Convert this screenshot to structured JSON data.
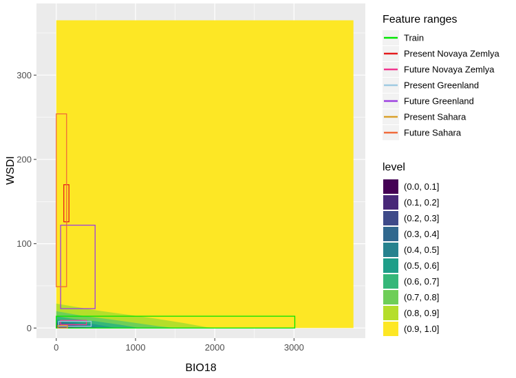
{
  "chart_data": {
    "type": "heatmap",
    "xlabel": "BIO18",
    "ylabel": "WSDI",
    "xlim": [
      -250,
      3900
    ],
    "ylim": [
      -12,
      385
    ],
    "x_ticks": [
      0,
      1000,
      2000,
      3000
    ],
    "y_ticks": [
      0,
      100,
      200,
      300
    ],
    "grid": true,
    "legend_position": "right",
    "surface_extent": {
      "x": [
        0,
        3750
      ],
      "y": [
        0,
        365
      ]
    },
    "feature_ranges": {
      "title": "Feature ranges",
      "series": [
        {
          "name": "Train",
          "color": "#00e600",
          "x": [
            0,
            3010
          ],
          "y": [
            0,
            14
          ]
        },
        {
          "name": "Present Novaya Zemlya",
          "color": "#e41a1c",
          "x": [
            95,
            160
          ],
          "y": [
            126,
            170
          ]
        },
        {
          "name": "Future Novaya Zemlya",
          "color": "#f0368e",
          "x": [
            55,
            380
          ],
          "y": [
            4,
            9
          ]
        },
        {
          "name": "Present Greenland",
          "color": "#9ecae1",
          "x": [
            30,
            440
          ],
          "y": [
            2,
            8
          ]
        },
        {
          "name": "Future Greenland",
          "color": "#9c3ee0",
          "x": [
            55,
            490
          ],
          "y": [
            23,
            122
          ]
        },
        {
          "name": "Present Sahara",
          "color": "#d9a02a",
          "x": [
            20,
            140
          ],
          "y": [
            0,
            3
          ]
        },
        {
          "name": "Future Sahara",
          "color": "#f06a3a",
          "x": [
            0,
            130
          ],
          "y": [
            49,
            254
          ]
        }
      ]
    },
    "level_legend": {
      "title": "level",
      "bins": [
        {
          "label": "(0.0, 0.1]",
          "color": "#440154"
        },
        {
          "label": "(0.1, 0.2]",
          "color": "#482878"
        },
        {
          "label": "(0.2, 0.3]",
          "color": "#3e4a89"
        },
        {
          "label": "(0.3, 0.4]",
          "color": "#31688e"
        },
        {
          "label": "(0.4, 0.5]",
          "color": "#26828e"
        },
        {
          "label": "(0.5, 0.6]",
          "color": "#1f9e89"
        },
        {
          "label": "(0.6, 0.7]",
          "color": "#35b779"
        },
        {
          "label": "(0.7, 0.8]",
          "color": "#6ece58"
        },
        {
          "label": "(0.8, 0.9]",
          "color": "#b5de2b"
        },
        {
          "label": "(0.9, 1.0]",
          "color": "#fde725"
        }
      ]
    },
    "contour_bands": [
      {
        "level": "(0.8, 0.9]",
        "color": "#b5de2b",
        "points": [
          [
            0,
            0
          ],
          [
            0,
            29
          ],
          [
            500,
            21
          ],
          [
            1200,
            12
          ],
          [
            1600,
            6
          ],
          [
            1900,
            1
          ],
          [
            2050,
            0
          ]
        ]
      },
      {
        "level": "(0.7, 0.8]",
        "color": "#6ece58",
        "points": [
          [
            0,
            0
          ],
          [
            0,
            20
          ],
          [
            300,
            15
          ],
          [
            700,
            10
          ],
          [
            1000,
            6
          ],
          [
            1300,
            2
          ],
          [
            1500,
            0
          ]
        ]
      },
      {
        "level": "(0.6, 0.7]",
        "color": "#35b779",
        "points": [
          [
            0,
            0
          ],
          [
            0,
            14
          ],
          [
            200,
            11
          ],
          [
            500,
            8
          ],
          [
            800,
            4
          ],
          [
            1050,
            0
          ]
        ]
      },
      {
        "level": "(0.5, 0.6]",
        "color": "#1f9e89",
        "points": [
          [
            0,
            0
          ],
          [
            0,
            10
          ],
          [
            200,
            8
          ],
          [
            450,
            5
          ],
          [
            700,
            1
          ],
          [
            800,
            0
          ]
        ]
      },
      {
        "level": "(0.4, 0.5]",
        "color": "#26828e",
        "points": [
          [
            0,
            0
          ],
          [
            0,
            8
          ],
          [
            200,
            6
          ],
          [
            400,
            3
          ],
          [
            550,
            0
          ]
        ]
      },
      {
        "level": "(0.3, 0.4]",
        "color": "#31688e",
        "points": [
          [
            0,
            0
          ],
          [
            0,
            6
          ],
          [
            150,
            5
          ],
          [
            300,
            2
          ],
          [
            400,
            0
          ]
        ]
      },
      {
        "level": "(0.2, 0.3]",
        "color": "#3e4a89",
        "points": [
          [
            0,
            0
          ],
          [
            0,
            4
          ],
          [
            120,
            3
          ],
          [
            250,
            0
          ]
        ]
      },
      {
        "level": "(0.1, 0.2]",
        "color": "#482878",
        "points": [
          [
            0,
            0
          ],
          [
            0,
            3
          ],
          [
            100,
            2
          ],
          [
            160,
            0
          ]
        ]
      }
    ]
  }
}
